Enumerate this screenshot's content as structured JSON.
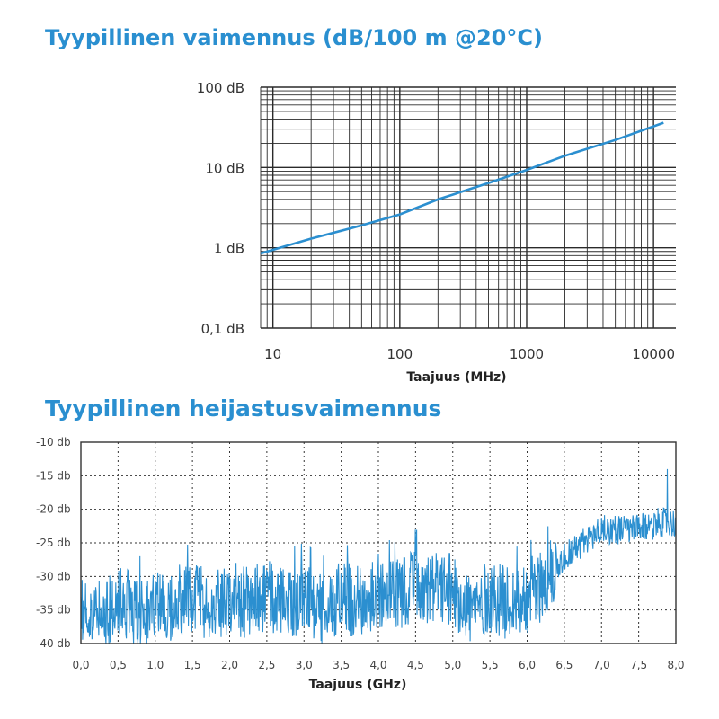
{
  "chart_data": [
    {
      "type": "line",
      "title": "Tyypillinen vaimennus (dB/100 m @20°C)",
      "xlabel": "Taajuus (MHz)",
      "ylabel": "",
      "x_scale": "log",
      "y_scale": "log",
      "xlim": [
        8,
        15000
      ],
      "ylim": [
        0.1,
        100
      ],
      "x_ticks": [
        10,
        100,
        1000,
        10000
      ],
      "x_tick_labels": [
        "10",
        "100",
        "1000",
        "10000"
      ],
      "y_ticks": [
        0.1,
        1,
        10,
        100
      ],
      "y_tick_labels": [
        "0,1 dB",
        "1 dB",
        "10 dB",
        "100 dB"
      ],
      "grid": true,
      "color": "#2b8fd0",
      "series": [
        {
          "x": [
            8,
            20,
            50,
            100,
            200,
            500,
            1000,
            2000,
            5000,
            12000
          ],
          "y": [
            0.85,
            1.3,
            1.9,
            2.6,
            4.0,
            6.4,
            9.3,
            14,
            22,
            36
          ]
        }
      ]
    },
    {
      "type": "line",
      "title": "Tyypillinen heijastusvaimennus",
      "xlabel": "Taajuus (GHz)",
      "ylabel": "",
      "xlim": [
        0,
        8
      ],
      "ylim": [
        -40,
        -10
      ],
      "x_ticks": [
        0,
        0.5,
        1,
        1.5,
        2,
        2.5,
        3,
        3.5,
        4,
        4.5,
        5,
        5.5,
        6,
        6.5,
        7,
        7.5,
        8
      ],
      "x_tick_labels": [
        "0,0",
        "0,5",
        "1,0",
        "1,5",
        "2,0",
        "2,5",
        "3,0",
        "3,5",
        "4,0",
        "4,5",
        "5,0",
        "5,5",
        "6,0",
        "6,5",
        "7,0",
        "7,5",
        "8,0"
      ],
      "y_ticks": [
        -10,
        -15,
        -20,
        -25,
        -30,
        -35,
        -40
      ],
      "y_tick_labels": [
        "-10 db",
        "-15 db",
        "-20 db",
        "-25 db",
        "-30 db",
        "-35 db",
        "-40 db"
      ],
      "grid": "dotted",
      "color": "#2b8fd0",
      "series": [
        {
          "x": [
            0,
            0.25,
            0.5,
            0.75,
            1,
            1.25,
            1.5,
            1.75,
            2,
            2.25,
            2.5,
            2.75,
            3,
            3.25,
            3.5,
            3.75,
            4,
            4.25,
            4.5,
            4.75,
            5,
            5.25,
            5.5,
            5.75,
            6,
            6.25,
            6.5,
            6.75,
            7,
            7.25,
            7.5,
            7.75,
            8
          ],
          "y": [
            -35,
            -36,
            -34,
            -35,
            -35,
            -34,
            -33,
            -35,
            -33,
            -34,
            -33,
            -34,
            -33,
            -35,
            -33,
            -34,
            -32,
            -33,
            -31,
            -32,
            -32,
            -35,
            -33,
            -34,
            -33,
            -31,
            -27,
            -25,
            -23,
            -23,
            -23,
            -22,
            -22
          ]
        }
      ]
    }
  ]
}
